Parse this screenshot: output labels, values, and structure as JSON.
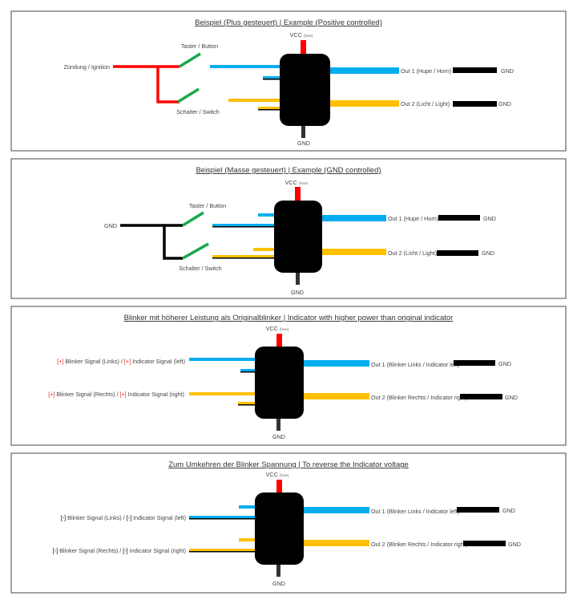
{
  "colors": {
    "vcc": "#ff0000",
    "signal1": "#00aeef",
    "signal2": "#ffc000",
    "switch": "#1aa84b",
    "ground": "#000000",
    "module": "#000000"
  },
  "panels": [
    {
      "title_de": "Beispiel (Plus gesteuert)",
      "sep": "|",
      "title_en": "Example (Positive controlled)",
      "vcc": "VCC",
      "fuse": "(fuse)",
      "input": "Zündung / Ignition",
      "button": "Taster / Button",
      "switch": "Schalter / Switch",
      "out1": "Out 1 (Hupe / Horn)",
      "out2": "Out 2 (Licht / Light)",
      "gnd": "GND"
    },
    {
      "title_de": "Beispiel (Masse gesteuert)",
      "sep": "|",
      "title_en": "Example (GND controlled)",
      "vcc": "VCC",
      "fuse": "(fuse)",
      "input": "GND",
      "button": "Taster / Button",
      "switch": "Schalter / Switch",
      "out1": "Out 1 (Hupe / Horn)",
      "out2": "Out 2 (Licht / Light)",
      "gnd": "GND"
    },
    {
      "title_de": "Blinker mit höherer Leistung als Originalblinker",
      "sep": "|",
      "title_en": "Indicator with higher power than original indicator",
      "vcc": "VCC",
      "fuse": "(fuse)",
      "in1_mark": "[+]",
      "in1_de": " Blinker Signal (Links) / ",
      "in1_mark2": "[+]",
      "in1_en": " Indicator Signal (left)",
      "in2_mark": "[+]",
      "in2_de": " Blinker Signal (Rechts) / ",
      "in2_mark2": "[+]",
      "in2_en": " Indicator Signal (right)",
      "out1": "Out 1 (Blinker Links / Indicator left)",
      "out2": "Out 2 (Blinker Rechts / Indicator right)",
      "gnd": "GND"
    },
    {
      "title_de": "Zum Umkehren der Blinker Spannung",
      "sep": "|",
      "title_en": "To reverse the Indicator voltage",
      "vcc": "VCC",
      "fuse": "(fuse)",
      "in1_mark": "[-]",
      "in1_de": " Blinker Signal (Links) / ",
      "in1_mark2": "[-]",
      "in1_en": " Indicator Signal (left)",
      "in2_mark": "[-]",
      "in2_de": " Blinker Signal (Rechts) / ",
      "in2_mark2": "[-]",
      "in2_en": " Indicator Signal (right)",
      "out1": "Out 1 (Blinker Links / Indicator left)",
      "out2": "Out 2 (Blinker Rechts / Indicator right)",
      "gnd": "GND"
    }
  ]
}
